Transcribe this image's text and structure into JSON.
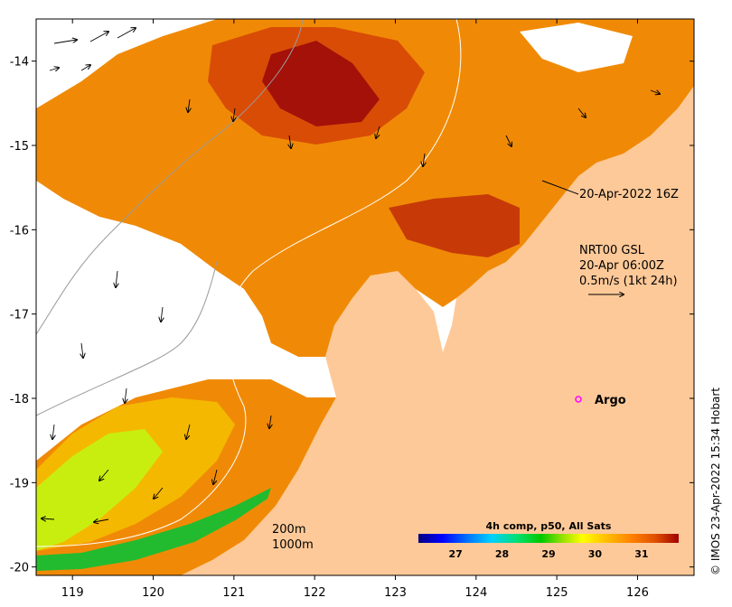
{
  "map": {
    "x_ticks": [
      "119",
      "120",
      "121",
      "122",
      "123",
      "124",
      "125",
      "126"
    ],
    "y_ticks": [
      "-14",
      "-15",
      "-16",
      "-17",
      "-18",
      "-19",
      "-20"
    ]
  },
  "annotations": {
    "swath_time": "20-Apr-2022 16Z",
    "current_product": "NRT00 GSL",
    "current_time": "20-Apr 06:00Z",
    "current_scale": "0.5m/s (1kt 24h)",
    "argo_label": "Argo",
    "contour_200": "200m",
    "contour_1000": "1000m"
  },
  "colorbar": {
    "title": "4h comp, p50, All Sats",
    "ticks": [
      "27",
      "28",
      "29",
      "30",
      "31"
    ],
    "range": [
      26.2,
      31.8
    ],
    "colors": [
      "#00007f",
      "#0000ff",
      "#0080ff",
      "#00d0ff",
      "#00e070",
      "#00c800",
      "#90e000",
      "#ffff00",
      "#ffc000",
      "#ff8000",
      "#e05000",
      "#a00000"
    ]
  },
  "colors": {
    "land": "#fec998",
    "sst_hot": "#a31109",
    "sst_warm": "#d94c06",
    "sst_mid": "#f08a06",
    "sst_cool": "#f5b800",
    "sst_lime": "#c8ee10",
    "sst_green": "#22bb30",
    "argo": "#ff00ff"
  },
  "credit": "© IMOS 23-Apr-2022 15:34 Hobart"
}
